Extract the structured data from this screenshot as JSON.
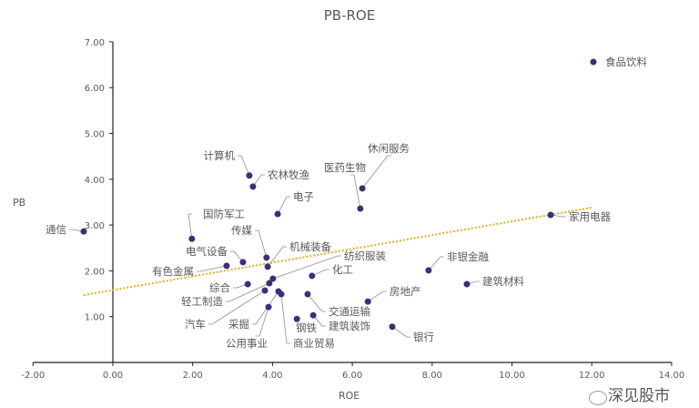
{
  "chart_data": {
    "type": "scatter",
    "title": "PB-ROE",
    "xlabel": "ROE",
    "ylabel": "PB",
    "xlim": [
      -2,
      14
    ],
    "ylim": [
      0,
      7
    ],
    "xticks": [
      "-2.00",
      "0.00",
      "2.00",
      "4.00",
      "6.00",
      "8.00",
      "10.00",
      "12.00",
      "14.00"
    ],
    "yticks": [
      "1.00",
      "2.00",
      "3.00",
      "4.00",
      "5.00",
      "6.00",
      "7.00"
    ],
    "grid": false,
    "point_color": "#3b2f7a",
    "trendline": {
      "type": "linear",
      "style": "dotted",
      "color": "#e0b020",
      "slope": 0.15,
      "intercept": 1.58,
      "x_range": [
        -0.73,
        12.0
      ]
    },
    "points": [
      {
        "label": "食品饮料",
        "x": 12.04,
        "y": 6.56
      },
      {
        "label": "通信",
        "x": -0.73,
        "y": 2.86
      },
      {
        "label": "计算机",
        "x": 3.42,
        "y": 4.08
      },
      {
        "label": "农林牧渔",
        "x": 3.51,
        "y": 3.84
      },
      {
        "label": "电子",
        "x": 4.13,
        "y": 3.24
      },
      {
        "label": "国防军工",
        "x": 1.98,
        "y": 2.7
      },
      {
        "label": "传媒",
        "x": 3.85,
        "y": 2.29
      },
      {
        "label": "机械装备",
        "x": 3.88,
        "y": 2.09
      },
      {
        "label": "电气设备",
        "x": 3.26,
        "y": 2.19
      },
      {
        "label": "有色金属",
        "x": 2.85,
        "y": 2.11
      },
      {
        "label": "综合",
        "x": 3.38,
        "y": 1.71
      },
      {
        "label": "纺织服装",
        "x": 4.01,
        "y": 1.83
      },
      {
        "label": "轻工制造",
        "x": 3.92,
        "y": 1.73
      },
      {
        "label": "汽车",
        "x": 3.81,
        "y": 1.57
      },
      {
        "label": "采掘",
        "x": 4.15,
        "y": 1.55
      },
      {
        "label": "商业贸易",
        "x": 4.22,
        "y": 1.49
      },
      {
        "label": "公用事业",
        "x": 3.9,
        "y": 1.21
      },
      {
        "label": "钢铁",
        "x": 4.61,
        "y": 0.95
      },
      {
        "label": "交通运输",
        "x": 4.88,
        "y": 1.49
      },
      {
        "label": "建筑装饰",
        "x": 5.02,
        "y": 1.03
      },
      {
        "label": "化工",
        "x": 4.99,
        "y": 1.89
      },
      {
        "label": "房地产",
        "x": 6.39,
        "y": 1.33
      },
      {
        "label": "银行",
        "x": 7.0,
        "y": 0.78
      },
      {
        "label": "非银金融",
        "x": 7.91,
        "y": 2.01
      },
      {
        "label": "建筑材料",
        "x": 8.87,
        "y": 1.71
      },
      {
        "label": "家用电器",
        "x": 10.97,
        "y": 3.22
      },
      {
        "label": "休闲服务",
        "x": 6.25,
        "y": 3.8
      },
      {
        "label": "医药生物",
        "x": 6.2,
        "y": 3.36
      }
    ]
  },
  "watermark": "深见股市"
}
